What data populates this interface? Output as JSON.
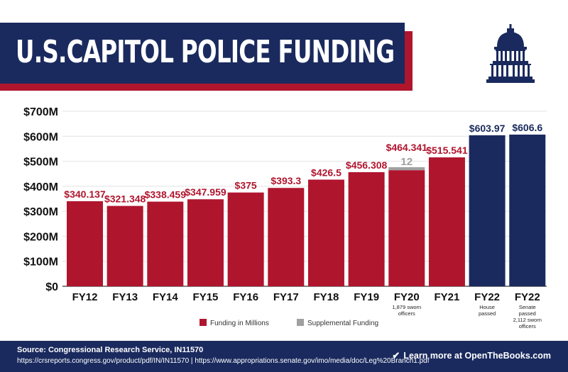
{
  "title": "U.S.CAPITOL POLICE FUNDING",
  "colors": {
    "red": "#b0152e",
    "navy": "#1a2a5e",
    "gray": "#a0a0a0",
    "grid": "#e2e2e2",
    "white": "#ffffff"
  },
  "chart_data": {
    "type": "bar",
    "title": "",
    "xlabel": "",
    "ylabel": "",
    "ylim": [
      0,
      700
    ],
    "y_ticks": [
      "$0",
      "$100M",
      "$200M",
      "$300M",
      "$400M",
      "$500M",
      "$600M",
      "$700M"
    ],
    "grid": true,
    "legend_position": "bottom",
    "categories": [
      "FY12",
      "FY13",
      "FY14",
      "FY15",
      "FY16",
      "FY17",
      "FY18",
      "FY19",
      "FY20",
      "FY21",
      "FY22",
      "FY22"
    ],
    "category_notes": [
      "",
      "",
      "",
      "",
      "",
      "",
      "",
      "",
      "1,879 sworn\nofficers",
      "",
      "House\npassed",
      "Senate\npassed\n2,112 sworn\nofficers"
    ],
    "series": [
      {
        "name": "Funding in Millions",
        "color": "#b0152e",
        "values": [
          340.137,
          321.348,
          338.459,
          347.959,
          375,
          393.3,
          426.5,
          456.308,
          464.341,
          515.541,
          603.97,
          606.6
        ],
        "labels": [
          "$340.137",
          "$321.348",
          "$338.459",
          "$347.959",
          "$375",
          "$393.3",
          "$426.5",
          "$456.308",
          "$464.341",
          "$515.541",
          "$603.97",
          "$606.6"
        ]
      },
      {
        "name": "Supplemental Funding",
        "color": "#a0a0a0",
        "values": [
          0,
          0,
          0,
          0,
          0,
          0,
          0,
          0,
          12,
          0,
          0,
          0
        ],
        "labels": [
          "",
          "",
          "",
          "",
          "",
          "",
          "",
          "",
          "12",
          "",
          "",
          ""
        ]
      }
    ],
    "bar_colors": [
      "#b0152e",
      "#b0152e",
      "#b0152e",
      "#b0152e",
      "#b0152e",
      "#b0152e",
      "#b0152e",
      "#b0152e",
      "#b0152e",
      "#b0152e",
      "#1a2a5e",
      "#1a2a5e"
    ]
  },
  "legend": {
    "items": [
      {
        "label": "Funding in Millions",
        "color": "#b0152e"
      },
      {
        "label": "Supplemental Funding",
        "color": "#a0a0a0"
      }
    ]
  },
  "footer": {
    "source": "Source: Congressional Research Service, IN11570",
    "links": "https://crsreports.congress.gov/product/pdf/IN/IN11570 | https://www.appropriations.senate.gov/imo/media/doc/Leg%20Branch1.pdf",
    "cta": "Learn more at OpenTheBooks.com",
    "cta_icon": "check-circle-icon"
  }
}
